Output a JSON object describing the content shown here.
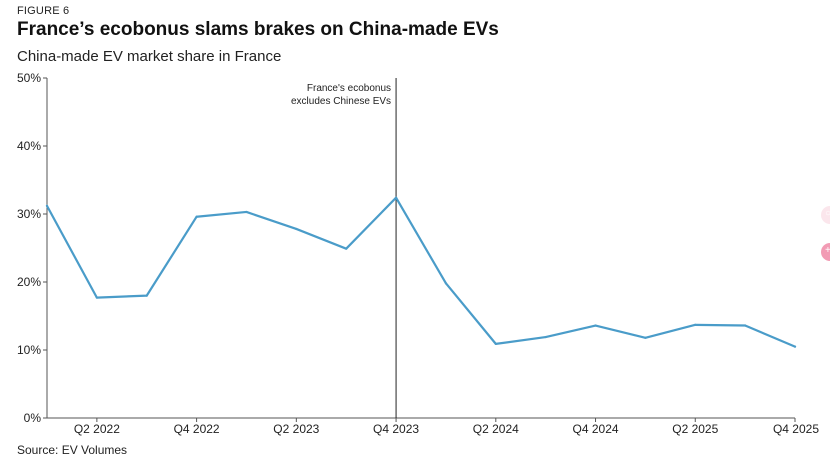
{
  "header": {
    "figure_label": "FIGURE 6",
    "title": "France’s ecobonus slams brakes on China-made EVs",
    "subtitle": "China-made EV market share in France"
  },
  "footer": {
    "source": "Source: EV Volumes"
  },
  "colors": {
    "line": "#4a9cc9",
    "axis": "#555555",
    "annotation": "#222222",
    "side_button_light": "#fbe6ec",
    "side_button_pink": "#f29bb4"
  },
  "chart_data": {
    "type": "line",
    "title": "France’s ecobonus slams brakes on China-made EVs",
    "subtitle": "China-made EV market share in France",
    "xlabel": "",
    "ylabel": "",
    "ylim": [
      0,
      50
    ],
    "y_ticks": [
      0,
      10,
      20,
      30,
      40,
      50
    ],
    "y_tick_labels": [
      "0%",
      "10%",
      "20%",
      "30%",
      "40%",
      "50%"
    ],
    "x": [
      "Q1 2022",
      "Q2 2022",
      "Q3 2022",
      "Q4 2022",
      "Q1 2023",
      "Q2 2023",
      "Q3 2023",
      "Q4 2023",
      "Q1 2024",
      "Q2 2024",
      "Q3 2024",
      "Q4 2024",
      "Q1 2025",
      "Q2 2025",
      "Q3 2025",
      "Q4 2025"
    ],
    "x_tick_labels": [
      "Q2 2022",
      "Q4 2022",
      "Q2 2023",
      "Q4 2023",
      "Q2 2024",
      "Q4 2024",
      "Q2 2025",
      "Q4 2025"
    ],
    "series": [
      {
        "name": "China-made EV market share",
        "values": [
          31.2,
          17.7,
          18.0,
          29.6,
          30.3,
          27.8,
          24.9,
          32.4,
          19.8,
          10.9,
          11.9,
          13.6,
          11.8,
          13.7,
          13.6,
          10.5
        ]
      }
    ],
    "annotations": [
      {
        "x": "Q4 2023",
        "lines": [
          "France's ecobonus",
          "excludes Chinese EVs"
        ]
      }
    ],
    "grid": false,
    "legend": "none"
  }
}
